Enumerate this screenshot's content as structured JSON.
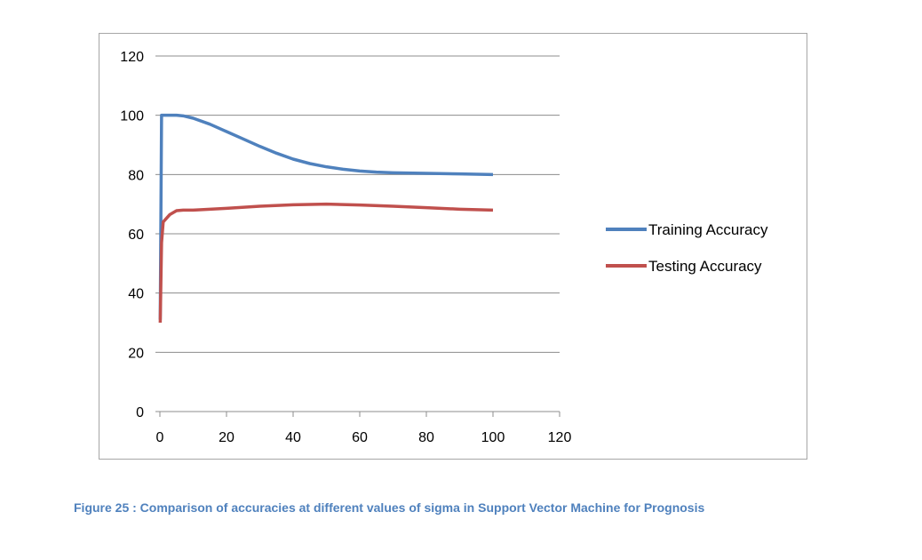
{
  "caption": "Figure 25 : Comparison of accuracies at different values of sigma in Support Vector Machine for Prognosis",
  "chart_data": {
    "type": "line",
    "title": "",
    "xlabel": "",
    "ylabel": "",
    "xlim": [
      0,
      120
    ],
    "ylim": [
      0,
      120
    ],
    "xticks": [
      0,
      20,
      40,
      60,
      80,
      100,
      120
    ],
    "yticks": [
      0,
      20,
      40,
      60,
      80,
      100,
      120
    ],
    "grid": "horizontal",
    "legend_position": "right",
    "series": [
      {
        "name": "Training Accuracy",
        "color": "#4f81bd",
        "x": [
          0.1,
          0.5,
          1,
          3,
          5,
          7,
          10,
          15,
          20,
          25,
          30,
          35,
          40,
          45,
          50,
          55,
          60,
          65,
          70,
          80,
          90,
          100
        ],
        "y": [
          31,
          100,
          100,
          100,
          100,
          99.8,
          99,
          97,
          94.5,
          92,
          89.5,
          87.2,
          85.2,
          83.7,
          82.6,
          81.8,
          81.2,
          80.8,
          80.6,
          80.4,
          80.2,
          80
        ]
      },
      {
        "name": "Testing Accuracy",
        "color": "#c0504d",
        "x": [
          0.1,
          0.5,
          1,
          3,
          5,
          7,
          10,
          20,
          30,
          40,
          50,
          60,
          70,
          80,
          90,
          100
        ],
        "y": [
          30,
          57,
          64,
          66.5,
          67.8,
          68,
          68,
          68.6,
          69.3,
          69.8,
          70,
          69.7,
          69.3,
          68.8,
          68.3,
          68
        ]
      }
    ]
  }
}
